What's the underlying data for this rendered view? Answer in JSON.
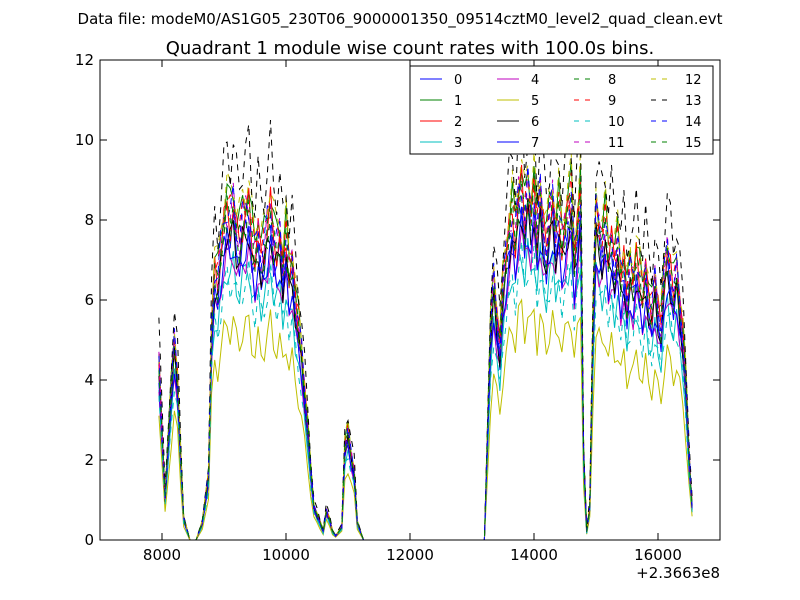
{
  "chart_data": {
    "type": "line",
    "suptitle": "Data file: modeM0/AS1G05_230T06_9000001350_09514cztM0_level2_quad_clean.evt",
    "title": "Quadrant 1 module wise count rates with 100.0s bins.",
    "xlabel": "",
    "ylabel": "",
    "x_offset_label": "+2.3663e8",
    "xlim": [
      7000,
      17000
    ],
    "ylim": [
      0,
      12
    ],
    "xticks": [
      8000,
      10000,
      12000,
      14000,
      16000
    ],
    "yticks": [
      0,
      2,
      4,
      6,
      8,
      10,
      12
    ],
    "grid": false,
    "legend_position": "top-right",
    "x": [
      7950,
      8050,
      8150,
      8200,
      8250,
      8300,
      8350,
      8450,
      8550,
      8650,
      8750,
      8800,
      8850,
      8900,
      8950,
      9000,
      9050,
      9100,
      9150,
      9200,
      9250,
      9300,
      9350,
      9400,
      9450,
      9500,
      9550,
      9600,
      9650,
      9700,
      9750,
      9800,
      9850,
      9900,
      9950,
      10000,
      10050,
      10100,
      10150,
      10200,
      10250,
      10300,
      10350,
      10400,
      10450,
      10500,
      10550,
      10600,
      10650,
      10700,
      10750,
      10800,
      10900,
      10950,
      11000,
      11050,
      11100,
      11150,
      11250,
      12000,
      13200,
      13300,
      13350,
      13400,
      13450,
      13500,
      13550,
      13600,
      13650,
      13700,
      13750,
      13800,
      13850,
      13900,
      13950,
      14000,
      14050,
      14100,
      14150,
      14200,
      14250,
      14300,
      14350,
      14400,
      14450,
      14500,
      14550,
      14600,
      14650,
      14700,
      14750,
      14800,
      14850,
      14900,
      14950,
      15000,
      15050,
      15100,
      15150,
      15200,
      15250,
      15300,
      15350,
      15400,
      15450,
      15500,
      15550,
      15600,
      15650,
      15700,
      15750,
      15800,
      15850,
      15900,
      15950,
      16000,
      16050,
      16100,
      16150,
      16200,
      16250,
      16300,
      16350,
      16400,
      16450,
      16500,
      16550
    ],
    "base_profile": [
      4.2,
      1.0,
      3.5,
      4.6,
      3.8,
      2.0,
      0.5,
      0.0,
      0.0,
      0.4,
      1.5,
      5.0,
      6.3,
      6.0,
      6.8,
      7.4,
      7.7,
      7.4,
      7.8,
      7.2,
      7.0,
      7.4,
      7.6,
      7.8,
      7.0,
      6.6,
      7.2,
      6.6,
      6.8,
      7.3,
      7.8,
      7.0,
      6.8,
      7.1,
      6.3,
      7.0,
      6.2,
      6.5,
      5.6,
      5.0,
      4.4,
      3.5,
      2.6,
      1.6,
      0.8,
      0.6,
      0.4,
      0.2,
      0.7,
      0.5,
      0.2,
      0.1,
      0.3,
      2.2,
      2.5,
      2.0,
      1.6,
      0.4,
      0.0,
      0.0,
      0.0,
      4.8,
      6.0,
      5.2,
      4.5,
      5.8,
      6.6,
      7.2,
      7.6,
      7.0,
      8.0,
      8.3,
      7.4,
      8.1,
      7.6,
      8.2,
      7.0,
      8.0,
      7.3,
      6.8,
      7.4,
      7.9,
      7.1,
      7.6,
      6.9,
      7.3,
      7.7,
      7.9,
      6.5,
      7.3,
      8.1,
      2.0,
      0.2,
      0.8,
      4.8,
      7.5,
      7.2,
      6.9,
      7.3,
      6.6,
      7.0,
      6.4,
      6.8,
      6.1,
      6.5,
      5.6,
      6.2,
      6.0,
      6.6,
      6.1,
      5.7,
      6.3,
      5.6,
      5.3,
      6.0,
      5.4,
      5.0,
      6.1,
      6.7,
      6.3,
      5.8,
      6.2,
      5.5,
      4.8,
      3.6,
      2.0,
      0.8
    ],
    "series": [
      {
        "name": "0",
        "color": "#0000ff",
        "dash": "solid",
        "scale": 1.0,
        "seed": 1
      },
      {
        "name": "1",
        "color": "#008000",
        "dash": "solid",
        "scale": 1.13,
        "seed": 2
      },
      {
        "name": "2",
        "color": "#ff0000",
        "dash": "solid",
        "scale": 1.07,
        "seed": 3
      },
      {
        "name": "3",
        "color": "#00bfbf",
        "dash": "solid",
        "scale": 0.88,
        "seed": 4
      },
      {
        "name": "4",
        "color": "#bf00bf",
        "dash": "solid",
        "scale": 0.93,
        "seed": 5
      },
      {
        "name": "5",
        "color": "#bfbf00",
        "dash": "solid",
        "scale": 0.7,
        "seed": 6
      },
      {
        "name": "6",
        "color": "#000000",
        "dash": "solid",
        "scale": 1.0,
        "seed": 7
      },
      {
        "name": "7",
        "color": "#0000ff",
        "dash": "solid",
        "scale": 0.96,
        "seed": 8
      },
      {
        "name": "8",
        "color": "#008000",
        "dash": "dashed",
        "scale": 1.04,
        "seed": 9
      },
      {
        "name": "9",
        "color": "#ff0000",
        "dash": "dashed",
        "scale": 1.1,
        "seed": 10
      },
      {
        "name": "10",
        "color": "#00bfbf",
        "dash": "dashed",
        "scale": 0.85,
        "seed": 11
      },
      {
        "name": "11",
        "color": "#bf00bf",
        "dash": "dashed",
        "scale": 1.08,
        "seed": 12
      },
      {
        "name": "12",
        "color": "#bfbf00",
        "dash": "dashed",
        "scale": 1.16,
        "seed": 13
      },
      {
        "name": "13",
        "color": "#000000",
        "dash": "dashed",
        "scale": 1.27,
        "seed": 14
      },
      {
        "name": "14",
        "color": "#0000ff",
        "dash": "dashed",
        "scale": 1.09,
        "seed": 15
      },
      {
        "name": "15",
        "color": "#008000",
        "dash": "dashed",
        "scale": 1.06,
        "seed": 16
      }
    ]
  }
}
